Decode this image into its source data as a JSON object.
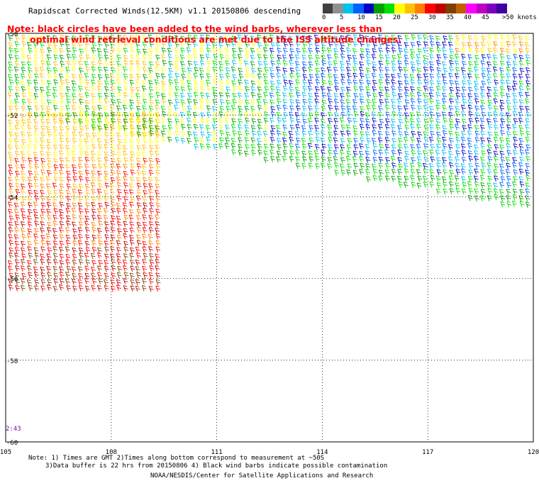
{
  "title": "Rapidscat Corrected Winds(12.5KM) v1.1 20150806 descending",
  "note_line1": "Note: black circles have been added to the wind barbs, wherever less than",
  "note_line2": "optimal wind retrieval conditions are met due to the ISS altitude changes.",
  "colorbar": {
    "labels": [
      "0",
      "5",
      "10",
      "15",
      "20",
      "25",
      "30",
      "35",
      "40",
      "45",
      ">50 knots"
    ],
    "colors": [
      "#404040",
      "#909090",
      "#00c0f0",
      "#0060ff",
      "#0000c0",
      "#00a000",
      "#00e000",
      "#ffff00",
      "#ffc000",
      "#ff8000",
      "#ff0000",
      "#c00000",
      "#804000",
      "#c06000",
      "#ff00ff",
      "#c000c0",
      "#8000c0",
      "#4000a0"
    ]
  },
  "chart_data": {
    "type": "map",
    "x_ticks": [
      "105",
      "108",
      "111",
      "114",
      "117",
      "120"
    ],
    "y_ticks": [
      "-50",
      "-52",
      "-54",
      "-56",
      "-58",
      "-60"
    ],
    "xlim": [
      105,
      120
    ],
    "ylim": [
      -60,
      -50
    ],
    "grid": true,
    "time_label": "2:43",
    "swaths": [
      {
        "name": "west",
        "lon": [
          105,
          109.4
        ],
        "lat": [
          -56.4,
          -51.9
        ],
        "speed_knots": [
          20,
          40
        ]
      },
      {
        "name": "north",
        "lon": [
          105,
          120
        ],
        "lat": [
          -54.1,
          -50
        ],
        "speed_knots": [
          5,
          25
        ]
      }
    ]
  },
  "footer": {
    "notes_line1": "Note: 1) Times are GMT 2)Times along bottom correspond to measurement at ~50S",
    "notes_line2": "3)Data buffer is 22 hrs from 20150806 4) Black wind barbs indicate possible contamination",
    "credit": "NOAA/NESDIS/Center for Satellite Applications and Research"
  }
}
